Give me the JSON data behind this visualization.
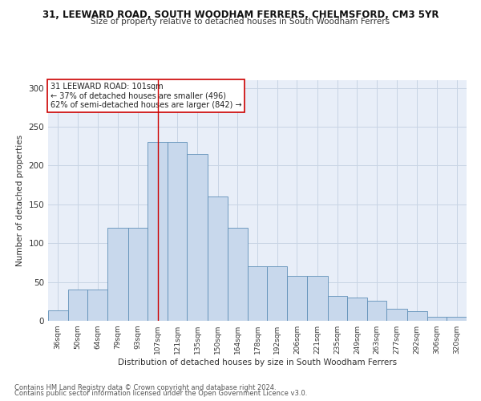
{
  "title": "31, LEEWARD ROAD, SOUTH WOODHAM FERRERS, CHELMSFORD, CM3 5YR",
  "subtitle": "Size of property relative to detached houses in South Woodham Ferrers",
  "xlabel": "Distribution of detached houses by size in South Woodham Ferrers",
  "ylabel": "Number of detached properties",
  "footnote1": "Contains HM Land Registry data © Crown copyright and database right 2024.",
  "footnote2": "Contains public sector information licensed under the Open Government Licence v3.0.",
  "annotation_line1": "31 LEEWARD ROAD: 101sqm",
  "annotation_line2": "← 37% of detached houses are smaller (496)",
  "annotation_line3": "62% of semi-detached houses are larger (842) →",
  "bar_color": "#c8d8ec",
  "bar_edge_color": "#6090b8",
  "grid_color": "#c8d4e4",
  "background_color": "#e8eef8",
  "property_line_color": "#cc0000",
  "categories": [
    "36sqm",
    "50sqm",
    "64sqm",
    "79sqm",
    "93sqm",
    "107sqm",
    "121sqm",
    "135sqm",
    "150sqm",
    "164sqm",
    "178sqm",
    "192sqm",
    "206sqm",
    "221sqm",
    "235sqm",
    "249sqm",
    "263sqm",
    "277sqm",
    "292sqm",
    "306sqm",
    "320sqm"
  ],
  "bin_edges": [
    29,
    43,
    57,
    71.5,
    86,
    100,
    114,
    128,
    142.5,
    157,
    171,
    185,
    199,
    213.5,
    228,
    242,
    256,
    270,
    284.5,
    299,
    313,
    327
  ],
  "values": [
    13,
    40,
    40,
    120,
    120,
    230,
    230,
    215,
    160,
    120,
    70,
    70,
    58,
    58,
    32,
    30,
    26,
    15,
    12,
    5,
    5
  ],
  "property_line_x": 107,
  "ylim": [
    0,
    310
  ],
  "yticks": [
    0,
    50,
    100,
    150,
    200,
    250,
    300
  ]
}
